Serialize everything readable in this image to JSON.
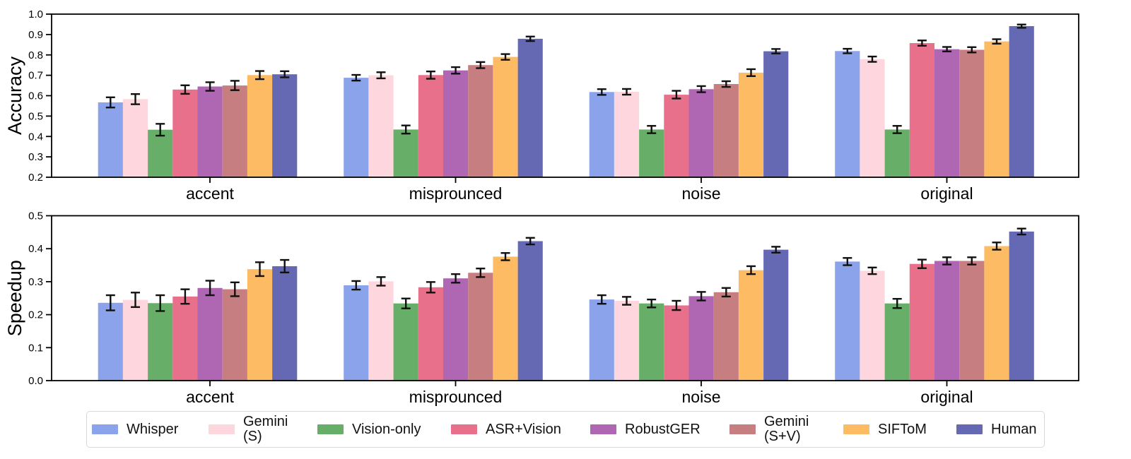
{
  "chart_data": [
    {
      "type": "bar",
      "title": "",
      "xlabel": "",
      "ylabel": "Accuracy",
      "ylim": [
        0.2,
        1.0
      ],
      "yticks": [
        0.2,
        0.3,
        0.4,
        0.5,
        0.6,
        0.7,
        0.8,
        0.9,
        1.0
      ],
      "grid": false,
      "error_bars": true,
      "categories": [
        "accent",
        "misprounced",
        "noise",
        "original"
      ],
      "series": [
        {
          "name": "Whisper",
          "color": "#8ba3ea",
          "values": [
            0.567,
            0.688,
            0.618,
            0.819
          ],
          "errors": [
            0.025,
            0.014,
            0.014,
            0.011
          ]
        },
        {
          "name": "Gemini (S)",
          "color": "#fdd7dd",
          "values": [
            0.583,
            0.7,
            0.619,
            0.779
          ],
          "errors": [
            0.025,
            0.015,
            0.014,
            0.013
          ]
        },
        {
          "name": "Vision-only",
          "color": "#67ae68",
          "values": [
            0.433,
            0.434,
            0.434,
            0.434
          ],
          "errors": [
            0.029,
            0.02,
            0.018,
            0.018
          ]
        },
        {
          "name": "ASR+Vision",
          "color": "#e8708a",
          "values": [
            0.63,
            0.701,
            0.605,
            0.858
          ],
          "errors": [
            0.021,
            0.018,
            0.019,
            0.013
          ]
        },
        {
          "name": "RobustGER",
          "color": "#af66b3",
          "values": [
            0.645,
            0.724,
            0.632,
            0.828
          ],
          "errors": [
            0.021,
            0.016,
            0.015,
            0.011
          ]
        },
        {
          "name": "Gemini (S+V)",
          "color": "#c67e80",
          "values": [
            0.65,
            0.75,
            0.657,
            0.825
          ],
          "errors": [
            0.023,
            0.015,
            0.014,
            0.013
          ]
        },
        {
          "name": "SIFToM",
          "color": "#fdbc63",
          "values": [
            0.701,
            0.79,
            0.713,
            0.866
          ],
          "errors": [
            0.02,
            0.014,
            0.017,
            0.011
          ]
        },
        {
          "name": "Human",
          "color": "#6569b4",
          "values": [
            0.705,
            0.879,
            0.818,
            0.941
          ],
          "errors": [
            0.015,
            0.011,
            0.011,
            0.008
          ]
        }
      ]
    },
    {
      "type": "bar",
      "title": "",
      "xlabel": "",
      "ylabel": "Speedup",
      "ylim": [
        0.0,
        0.5
      ],
      "yticks": [
        0.0,
        0.1,
        0.2,
        0.3,
        0.4,
        0.5
      ],
      "grid": false,
      "error_bars": true,
      "categories": [
        "accent",
        "misprounced",
        "noise",
        "original"
      ],
      "series": [
        {
          "name": "Whisper",
          "color": "#8ba3ea",
          "values": [
            0.236,
            0.289,
            0.246,
            0.361
          ],
          "errors": [
            0.023,
            0.013,
            0.013,
            0.011
          ]
        },
        {
          "name": "Gemini (S)",
          "color": "#fdd7dd",
          "values": [
            0.245,
            0.301,
            0.242,
            0.333
          ],
          "errors": [
            0.022,
            0.013,
            0.012,
            0.01
          ]
        },
        {
          "name": "Vision-only",
          "color": "#67ae68",
          "values": [
            0.235,
            0.234,
            0.234,
            0.234
          ],
          "errors": [
            0.024,
            0.015,
            0.012,
            0.014
          ]
        },
        {
          "name": "ASR+Vision",
          "color": "#e8708a",
          "values": [
            0.255,
            0.283,
            0.228,
            0.354
          ],
          "errors": [
            0.022,
            0.016,
            0.014,
            0.013
          ]
        },
        {
          "name": "RobustGER",
          "color": "#af66b3",
          "values": [
            0.281,
            0.31,
            0.256,
            0.363
          ],
          "errors": [
            0.022,
            0.013,
            0.013,
            0.011
          ]
        },
        {
          "name": "Gemini (S+V)",
          "color": "#c67e80",
          "values": [
            0.277,
            0.327,
            0.268,
            0.363
          ],
          "errors": [
            0.021,
            0.013,
            0.013,
            0.011
          ]
        },
        {
          "name": "SIFToM",
          "color": "#fdbc63",
          "values": [
            0.338,
            0.376,
            0.335,
            0.408
          ],
          "errors": [
            0.021,
            0.011,
            0.012,
            0.011
          ]
        },
        {
          "name": "Human",
          "color": "#6569b4",
          "values": [
            0.347,
            0.423,
            0.397,
            0.452
          ],
          "errors": [
            0.019,
            0.01,
            0.009,
            0.009
          ]
        }
      ]
    }
  ],
  "legend": {
    "items": [
      {
        "label": "Whisper",
        "color": "#8ba3ea"
      },
      {
        "label": "Gemini\n(S)",
        "color": "#fdd7dd"
      },
      {
        "label": "Vision-only",
        "color": "#67ae68"
      },
      {
        "label": "ASR+Vision",
        "color": "#e8708a"
      },
      {
        "label": "RobustGER",
        "color": "#af66b3"
      },
      {
        "label": "Gemini\n(S+V)",
        "color": "#c67e80"
      },
      {
        "label": "SIFToM",
        "color": "#fdbc63"
      },
      {
        "label": "Human",
        "color": "#6569b4"
      }
    ]
  },
  "style_colors": {
    "axis": "#000000",
    "error_bar": "#111111",
    "legend_border": "#d8d8d8",
    "background": "#ffffff"
  }
}
